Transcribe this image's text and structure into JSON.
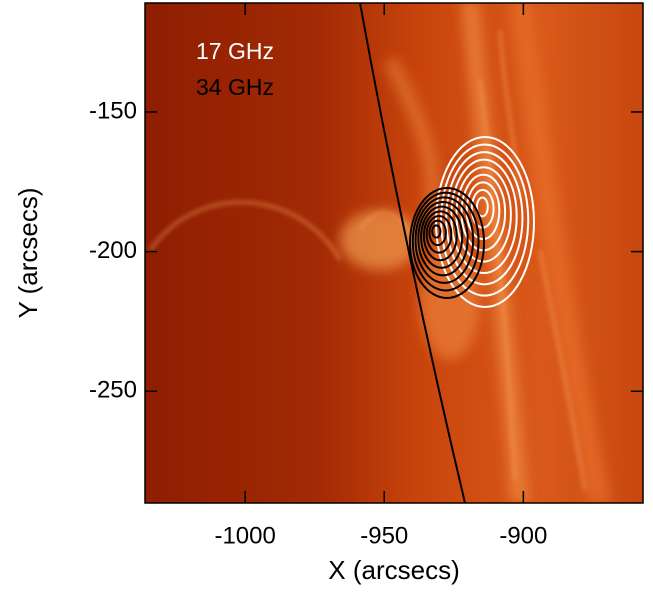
{
  "chart_data": {
    "type": "image",
    "x_label": "X (arcsecs)",
    "y_label": "Y (arcsecs)",
    "xlim": [
      -1036,
      -857
    ],
    "ylim": [
      -290,
      -111
    ],
    "xticks": [
      -1000,
      -950,
      -900
    ],
    "yticks": [
      -150,
      -200,
      -250
    ],
    "series": [
      {
        "name": "17 GHz",
        "color": "#ffffff"
      },
      {
        "name": "34 GHz",
        "color": "#000000"
      }
    ]
  }
}
